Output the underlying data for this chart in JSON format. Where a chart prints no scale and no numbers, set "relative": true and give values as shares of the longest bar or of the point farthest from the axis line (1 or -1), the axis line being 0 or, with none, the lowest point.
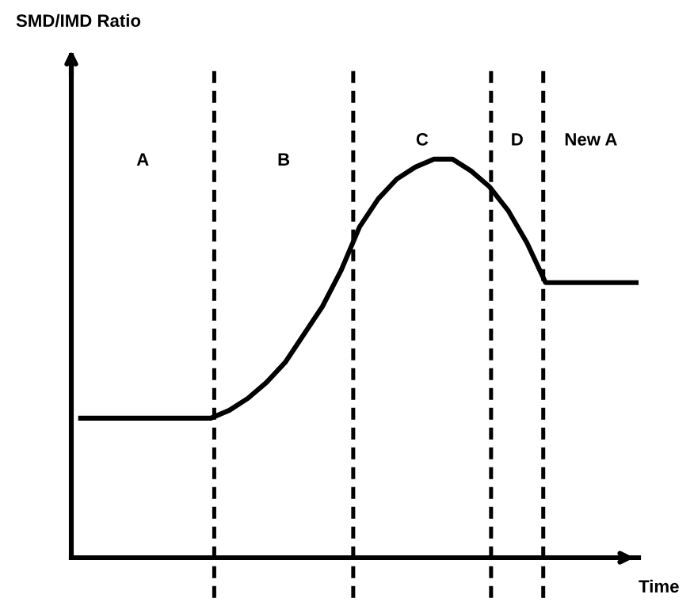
{
  "chart_data": {
    "type": "line",
    "relative": true,
    "xlabel": "Time",
    "tick_labels": false,
    "categories": [
      null,
      null,
      null,
      null,
      null,
      null,
      null,
      null,
      null,
      null,
      null,
      null,
      null,
      null,
      null,
      null,
      null,
      null,
      null,
      null,
      null,
      null,
      null,
      null,
      null,
      null,
      null,
      null,
      null,
      null,
      null
    ],
    "series": [
      {
        "color": "#000000",
        "values": [
          0.35,
          0.35,
          0.35,
          0.35,
          0.35,
          0.35,
          0.35,
          0.35,
          0.37,
          0.4,
          0.44,
          0.49,
          0.56,
          0.63,
          0.72,
          0.83,
          0.9,
          0.95,
          0.98,
          1,
          1,
          0.97,
          0.93,
          0.87,
          0.79,
          0.69,
          0.69,
          0.69,
          0.69,
          0.69,
          0.69
        ]
      }
    ],
    "annotations": [
      "A",
      "B",
      "C",
      "D",
      "New A",
      "SMD/IMD Ratio"
    ]
  }
}
